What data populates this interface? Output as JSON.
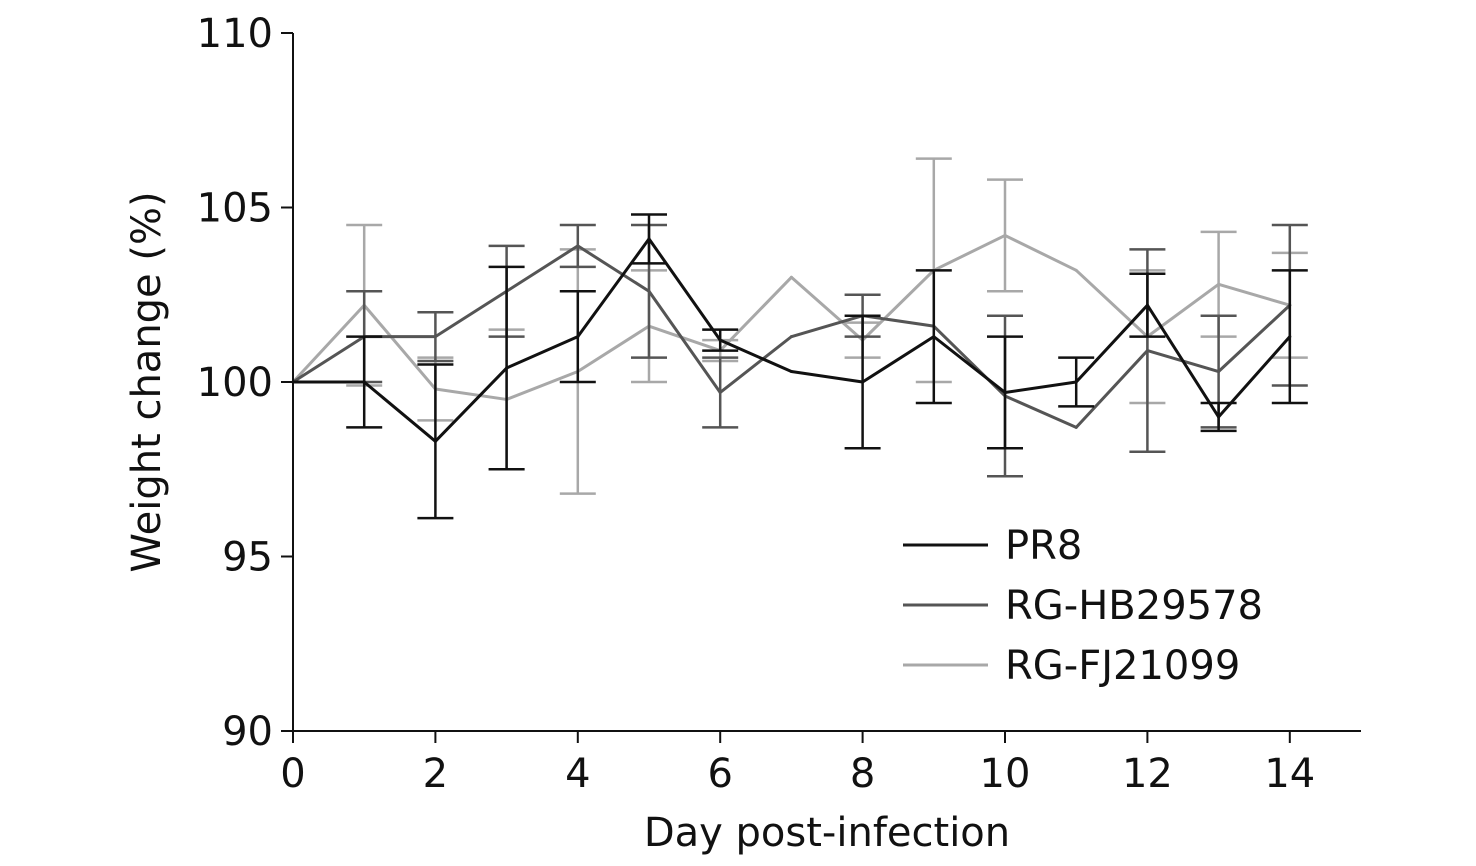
{
  "chart_data": {
    "type": "line",
    "xlabel": "Day post-infection",
    "ylabel": "Weight change (%)",
    "xlim": [
      0,
      15
    ],
    "ylim": [
      90,
      110
    ],
    "xticks": [
      0,
      2,
      4,
      6,
      8,
      10,
      12,
      14
    ],
    "xtick_labels": [
      "0",
      "2",
      "4",
      "6",
      "8",
      "10",
      "12",
      "14"
    ],
    "yticks": [
      90,
      95,
      100,
      105,
      110
    ],
    "ytick_labels": [
      "90",
      "95",
      "100",
      "105",
      "110"
    ],
    "grid": false,
    "legend_position": "bottom-right",
    "x": [
      0,
      1,
      2,
      3,
      4,
      5,
      6,
      7,
      8,
      9,
      10,
      11,
      12,
      13,
      14
    ],
    "series": [
      {
        "name": "PR8",
        "color": "#111111",
        "values": [
          100,
          100,
          98.3,
          100.4,
          101.3,
          104.1,
          101.2,
          100.3,
          100,
          101.3,
          99.7,
          100,
          102.2,
          99,
          101.3
        ],
        "error": [
          0,
          1.3,
          2.2,
          2.9,
          1.3,
          0.7,
          0.3,
          0,
          1.9,
          1.9,
          1.6,
          0.7,
          0.9,
          0.4,
          1.9
        ]
      },
      {
        "name": "RG-HB29578",
        "color": "#555555",
        "values": [
          100,
          101.3,
          101.3,
          102.6,
          103.9,
          102.6,
          99.7,
          101.3,
          101.9,
          101.6,
          99.6,
          98.7,
          100.9,
          100.3,
          102.2
        ],
        "error": [
          0,
          1.3,
          0.7,
          1.3,
          0.6,
          1.9,
          1.0,
          0,
          0.6,
          0,
          2.3,
          0,
          2.9,
          1.6,
          2.3
        ]
      },
      {
        "name": "RG-FJ21099",
        "color": "#a8a8a8",
        "values": [
          100,
          102.2,
          99.8,
          99.5,
          100.3,
          101.6,
          100.9,
          103,
          101.2,
          103.2,
          104.2,
          103.2,
          101.3,
          102.8,
          102.2
        ],
        "error": [
          0,
          2.3,
          0.9,
          2.0,
          3.5,
          1.6,
          0.3,
          0,
          0.5,
          3.2,
          1.6,
          0,
          1.9,
          1.5,
          1.5
        ]
      }
    ]
  }
}
